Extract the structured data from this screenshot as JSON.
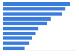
{
  "chart_data": {
    "type": "bar",
    "orientation": "horizontal",
    "categories": [
      null,
      null,
      null,
      null,
      null,
      null,
      null,
      null,
      null,
      null
    ],
    "values": [
      92,
      85,
      81,
      65,
      60,
      48,
      44,
      40,
      36,
      30
    ],
    "color": "#3b7ddd",
    "xlim": [
      0,
      100
    ],
    "grid": false,
    "tick_labels": false
  }
}
